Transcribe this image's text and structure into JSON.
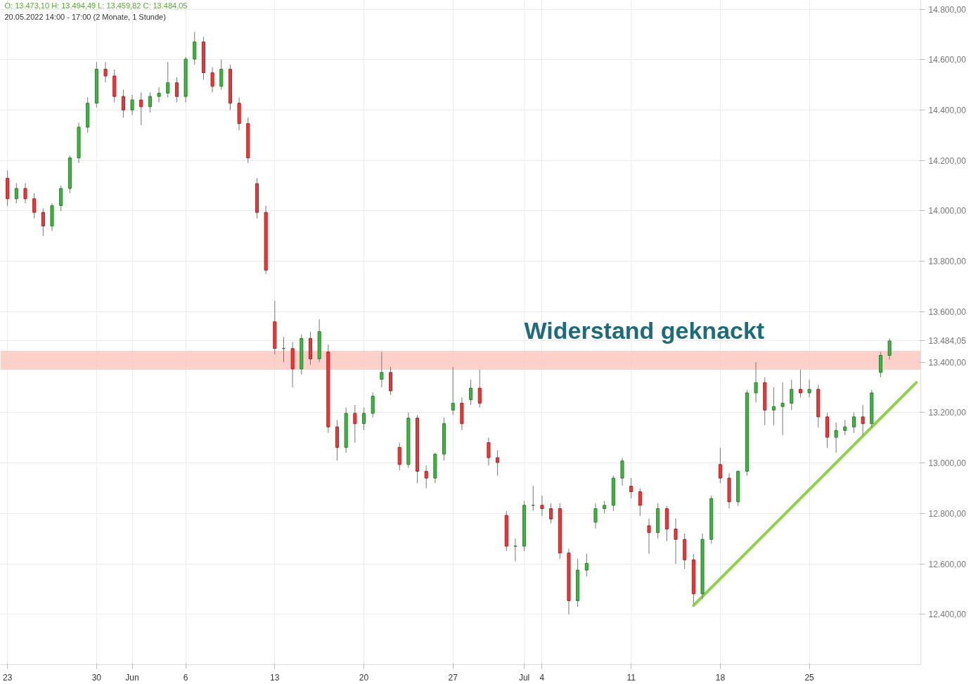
{
  "chart_data": {
    "type": "candlestick",
    "categories": [
      "23",
      null,
      null,
      null,
      null,
      null,
      null,
      null,
      null,
      null,
      "30",
      null,
      null,
      null,
      "Jun",
      null,
      null,
      null,
      null,
      null,
      "6",
      null,
      null,
      null,
      null,
      null,
      null,
      null,
      null,
      null,
      "13",
      null,
      null,
      null,
      null,
      null,
      null,
      null,
      null,
      null,
      "20",
      null,
      null,
      null,
      null,
      null,
      null,
      null,
      null,
      null,
      "27",
      null,
      null,
      null,
      null,
      null,
      null,
      null,
      "Jul",
      null,
      "4",
      null,
      null,
      null,
      null,
      null,
      null,
      null,
      null,
      null,
      "11",
      null,
      null,
      null,
      null,
      null,
      null,
      null,
      null,
      null,
      "18",
      null,
      null,
      null,
      null,
      null,
      null,
      null,
      null,
      null,
      "25",
      null,
      null,
      null,
      null,
      null,
      null,
      null,
      null,
      null,
      null,
      null,
      null
    ],
    "ohlc": [
      [
        14129,
        14160,
        14020,
        14048
      ],
      [
        14048,
        14110,
        14030,
        14089
      ],
      [
        14089,
        14110,
        14030,
        14048
      ],
      [
        14048,
        14070,
        13970,
        13994
      ],
      [
        13994,
        14010,
        13900,
        13940
      ],
      [
        13940,
        14030,
        13920,
        14021
      ],
      [
        14021,
        14100,
        14000,
        14089
      ],
      [
        14089,
        14220,
        14070,
        14210
      ],
      [
        14210,
        14350,
        14190,
        14332
      ],
      [
        14332,
        14450,
        14310,
        14427
      ],
      [
        14427,
        14590,
        14410,
        14562
      ],
      [
        14562,
        14590,
        14510,
        14535
      ],
      [
        14535,
        14560,
        14430,
        14454
      ],
      [
        14454,
        14480,
        14370,
        14400
      ],
      [
        14400,
        14460,
        14380,
        14440
      ],
      [
        14440,
        14470,
        14340,
        14413
      ],
      [
        14413,
        14470,
        14390,
        14454
      ],
      [
        14454,
        14490,
        14430,
        14467
      ],
      [
        14467,
        14590,
        14450,
        14508
      ],
      [
        14508,
        14530,
        14430,
        14454
      ],
      [
        14454,
        14610,
        14430,
        14602
      ],
      [
        14602,
        14710,
        14580,
        14670
      ],
      [
        14670,
        14690,
        14520,
        14548
      ],
      [
        14548,
        14570,
        14470,
        14494
      ],
      [
        14494,
        14600,
        14480,
        14562
      ],
      [
        14562,
        14580,
        14400,
        14427
      ],
      [
        14427,
        14450,
        14320,
        14346
      ],
      [
        14346,
        14370,
        14190,
        14210
      ],
      [
        14108,
        14130,
        13970,
        13994
      ],
      [
        13994,
        14020,
        13750,
        13765
      ],
      [
        13560,
        13643,
        13430,
        13454
      ],
      [
        13454,
        13500,
        13400,
        13454
      ],
      [
        13454,
        13480,
        13300,
        13373
      ],
      [
        13373,
        13510,
        13350,
        13494
      ],
      [
        13494,
        13520,
        13390,
        13413
      ],
      [
        13413,
        13570,
        13400,
        13521
      ],
      [
        13440,
        13470,
        13120,
        13143
      ],
      [
        13143,
        13170,
        13010,
        13062
      ],
      [
        13062,
        13220,
        13040,
        13197
      ],
      [
        13197,
        13230,
        13080,
        13156
      ],
      [
        13156,
        13220,
        13130,
        13197
      ],
      [
        13197,
        13280,
        13180,
        13265
      ],
      [
        13332,
        13440,
        13300,
        13359
      ],
      [
        13359,
        13380,
        13270,
        13286
      ],
      [
        13062,
        13080,
        12970,
        12994
      ],
      [
        12994,
        13200,
        12980,
        13178
      ],
      [
        13178,
        13190,
        12920,
        12967
      ],
      [
        12967,
        12990,
        12900,
        12940
      ],
      [
        12940,
        13040,
        12920,
        13035
      ],
      [
        13035,
        13180,
        13010,
        13156
      ],
      [
        13210,
        13380,
        13190,
        13237
      ],
      [
        13237,
        13260,
        13130,
        13156
      ],
      [
        13251,
        13330,
        13230,
        13297
      ],
      [
        13297,
        13370,
        13220,
        13237
      ],
      [
        13081,
        13100,
        12990,
        13021
      ],
      [
        13021,
        13050,
        12950,
        13002
      ],
      [
        12792,
        12810,
        12650,
        12670
      ],
      [
        12670,
        12700,
        12610,
        12670
      ],
      [
        12670,
        12850,
        12650,
        12832
      ],
      [
        12832,
        12910,
        12810,
        12832
      ],
      [
        12832,
        12870,
        12790,
        12819
      ],
      [
        12819,
        12840,
        12760,
        12778
      ],
      [
        12819,
        12840,
        12620,
        12643
      ],
      [
        12643,
        12660,
        12400,
        12454
      ],
      [
        12454,
        12620,
        12430,
        12575
      ],
      [
        12575,
        12640,
        12550,
        12602
      ],
      [
        12765,
        12840,
        12740,
        12819
      ],
      [
        12819,
        12850,
        12800,
        12832
      ],
      [
        12832,
        12950,
        12810,
        12940
      ],
      [
        12940,
        13020,
        12910,
        13008
      ],
      [
        12908,
        12940,
        12860,
        12886
      ],
      [
        12886,
        12900,
        12790,
        12832
      ],
      [
        12751,
        12780,
        12640,
        12724
      ],
      [
        12724,
        12840,
        12700,
        12819
      ],
      [
        12819,
        12830,
        12690,
        12738
      ],
      [
        12738,
        12780,
        12600,
        12697
      ],
      [
        12697,
        12720,
        12580,
        12616
      ],
      [
        12616,
        12640,
        12440,
        12481
      ],
      [
        12481,
        12720,
        12460,
        12697
      ],
      [
        12697,
        12870,
        12680,
        12859
      ],
      [
        12994,
        13060,
        12920,
        12940
      ],
      [
        12940,
        12960,
        12820,
        12846
      ],
      [
        12846,
        12970,
        12830,
        12967
      ],
      [
        12967,
        13290,
        12950,
        13278
      ],
      [
        13278,
        13400,
        13240,
        13319
      ],
      [
        13319,
        13340,
        13150,
        13210
      ],
      [
        13210,
        13300,
        13150,
        13224
      ],
      [
        13224,
        13320,
        13110,
        13237
      ],
      [
        13237,
        13330,
        13210,
        13292
      ],
      [
        13292,
        13370,
        13260,
        13278
      ],
      [
        13278,
        13330,
        13260,
        13292
      ],
      [
        13292,
        13310,
        13140,
        13183
      ],
      [
        13183,
        13200,
        13060,
        13102
      ],
      [
        13102,
        13160,
        13040,
        13129
      ],
      [
        13129,
        13170,
        13110,
        13143
      ],
      [
        13143,
        13200,
        13120,
        13183
      ],
      [
        13183,
        13230,
        13110,
        13156
      ],
      [
        13156,
        13290,
        13140,
        13278
      ],
      [
        13359,
        13440,
        13340,
        13427
      ],
      [
        13427,
        13494,
        13410,
        13484
      ],
      null,
      null,
      null
    ],
    "series": [
      {
        "type": "line",
        "color": "#8fd14f",
        "values": [
          null,
          null,
          null,
          null,
          null,
          null,
          null,
          null,
          null,
          null,
          null,
          null,
          null,
          null,
          null,
          null,
          null,
          null,
          null,
          null,
          null,
          null,
          null,
          null,
          null,
          null,
          null,
          null,
          null,
          null,
          null,
          null,
          null,
          null,
          null,
          null,
          null,
          null,
          null,
          null,
          null,
          null,
          null,
          null,
          null,
          null,
          null,
          null,
          null,
          null,
          null,
          null,
          null,
          null,
          null,
          null,
          null,
          null,
          null,
          null,
          null,
          null,
          null,
          null,
          null,
          null,
          null,
          null,
          null,
          null,
          null,
          null,
          null,
          null,
          null,
          null,
          null,
          12435,
          null,
          null,
          null,
          null,
          null,
          null,
          null,
          null,
          null,
          null,
          null,
          null,
          null,
          null,
          null,
          null,
          null,
          null,
          null,
          null,
          null,
          null,
          null,
          null,
          13319
        ]
      }
    ],
    "ylim": [
      12200,
      14835
    ],
    "yticks": [
      {
        "value": 12400,
        "label": "12.400,00"
      },
      {
        "value": 12600,
        "label": "12.600,00"
      },
      {
        "value": 12800,
        "label": "12.800,00"
      },
      {
        "value": 13000,
        "label": "13.000,00"
      },
      {
        "value": 13200,
        "label": "13.200,00"
      },
      {
        "value": 13400,
        "label": "13.400,00"
      },
      {
        "value": 13484.05,
        "label": "13.484,05"
      },
      {
        "value": 13600,
        "label": "13.600,00"
      },
      {
        "value": 13800,
        "label": "13.800,00"
      },
      {
        "value": 14000,
        "label": "14.000,00"
      },
      {
        "value": 14200,
        "label": "14.200,00"
      },
      {
        "value": 14400,
        "label": "14.400,00"
      },
      {
        "value": 14600,
        "label": "14.600,00"
      },
      {
        "value": 14800,
        "label": "14.800,00"
      }
    ],
    "bands": [
      {
        "axis": "y",
        "from": 13370,
        "to": 13445,
        "color": "#fcc9c0"
      }
    ],
    "annotations": [
      "O: 13.473,10  H: 13.494,49  L: 13.459,82  C: 13.484,05",
      "20.05.2022 14:00 - 17:00   (2 Monate, 1 Stunde)",
      "Widerstand geknackt"
    ],
    "grid": true
  }
}
